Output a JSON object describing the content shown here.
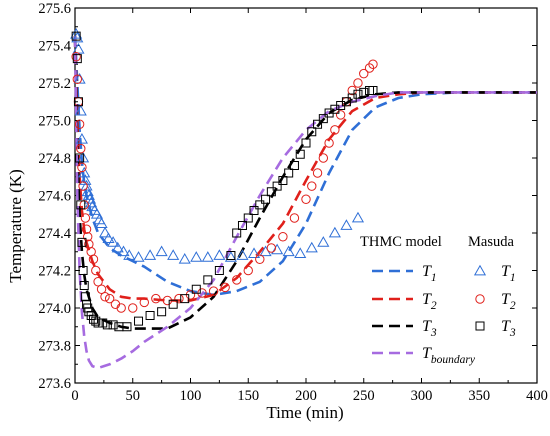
{
  "chart_data": {
    "type": "line",
    "xlabel": "Time (min)",
    "ylabel": "Temperature (K)",
    "xlim": [
      0,
      400
    ],
    "ylim": [
      273.6,
      275.6
    ],
    "xticks": [
      0,
      50,
      100,
      150,
      200,
      250,
      300,
      350,
      400
    ],
    "yticks": [
      273.6,
      273.8,
      274.0,
      274.2,
      274.4,
      274.6,
      274.8,
      275.0,
      275.2,
      275.4,
      275.6
    ],
    "xtick_labels": [
      "0",
      "50",
      "100",
      "150",
      "200",
      "250",
      "300",
      "350",
      "400"
    ],
    "ytick_labels": [
      "273.6",
      "273.8",
      "274.0",
      "274.2",
      "274.4",
      "274.6",
      "274.8",
      "275.0",
      "275.2",
      "275.4",
      "275.6"
    ],
    "grid": false,
    "legend": {
      "placement": "bottom-right",
      "model_header": "THMC model",
      "exp_header": "Masuda",
      "base_labels": [
        "T",
        "T",
        "T",
        "T"
      ],
      "sub_labels": [
        "1",
        "2",
        "3",
        "boundary"
      ]
    },
    "series": [
      {
        "kind": "model",
        "style": "dashed",
        "color": "#2f6fd6",
        "x": [
          0,
          2,
          4,
          6,
          8,
          10,
          15,
          20,
          30,
          40,
          50,
          60,
          80,
          100,
          120,
          140,
          160,
          180,
          200,
          220,
          240,
          260,
          280,
          300,
          330,
          360,
          400
        ],
        "y": [
          275.45,
          275.2,
          274.95,
          274.78,
          274.67,
          274.6,
          274.48,
          274.4,
          274.32,
          274.28,
          274.25,
          274.22,
          274.14,
          274.09,
          274.07,
          274.09,
          274.14,
          274.25,
          274.45,
          274.72,
          274.95,
          275.07,
          275.12,
          275.14,
          275.15,
          275.15,
          275.15
        ]
      },
      {
        "kind": "model",
        "style": "dashed",
        "color": "#e0201b",
        "x": [
          0,
          2,
          4,
          6,
          8,
          10,
          15,
          20,
          30,
          40,
          50,
          60,
          80,
          100,
          120,
          140,
          160,
          180,
          200,
          220,
          240,
          260,
          280,
          300,
          330,
          360,
          400
        ],
        "y": [
          275.45,
          275.0,
          274.7,
          274.52,
          274.42,
          274.35,
          274.25,
          274.18,
          274.1,
          274.06,
          274.05,
          274.05,
          274.04,
          274.04,
          274.07,
          274.16,
          274.3,
          274.45,
          274.68,
          274.9,
          275.05,
          275.12,
          275.14,
          275.15,
          275.15,
          275.15,
          275.15
        ]
      },
      {
        "kind": "model",
        "style": "dashed",
        "color": "#000000",
        "x": [
          0,
          2,
          4,
          6,
          8,
          10,
          15,
          20,
          30,
          40,
          50,
          60,
          80,
          100,
          120,
          140,
          160,
          180,
          200,
          220,
          240,
          260,
          280,
          300,
          330,
          360,
          400
        ],
        "y": [
          275.45,
          274.85,
          274.5,
          274.3,
          274.18,
          274.1,
          274.0,
          273.95,
          273.92,
          273.9,
          273.89,
          273.89,
          273.89,
          273.95,
          274.06,
          274.25,
          274.48,
          274.7,
          274.9,
          275.04,
          275.11,
          275.14,
          275.15,
          275.15,
          275.15,
          275.15,
          275.15
        ]
      },
      {
        "kind": "model",
        "style": "dashed",
        "color": "#a66be0",
        "x": [
          0,
          2,
          4,
          6,
          8,
          10,
          12,
          15,
          20,
          25,
          30,
          40,
          50,
          60,
          80,
          100,
          120,
          140,
          160,
          180,
          200,
          220,
          240,
          260,
          280,
          300,
          330,
          360,
          400
        ],
        "y": [
          275.45,
          274.6,
          274.2,
          273.98,
          273.85,
          273.77,
          273.72,
          273.69,
          273.68,
          273.69,
          273.7,
          273.73,
          273.77,
          273.82,
          273.9,
          274.0,
          274.15,
          274.38,
          274.6,
          274.8,
          274.95,
          275.05,
          275.1,
          275.13,
          275.15,
          275.15,
          275.15,
          275.15,
          275.15
        ]
      },
      {
        "kind": "experiment",
        "marker": "triangle",
        "color": "#2f6fd6",
        "x": [
          1,
          2,
          3,
          4,
          5,
          6,
          7,
          8,
          9,
          10,
          11,
          12,
          13,
          14,
          15,
          17,
          19,
          21,
          23,
          26,
          29,
          33,
          37,
          42,
          47,
          55,
          65,
          75,
          85,
          95,
          105,
          115,
          125,
          135,
          145,
          155,
          165,
          175,
          185,
          195,
          205,
          215,
          225,
          235,
          245
        ],
        "y": [
          275.46,
          275.44,
          275.38,
          275.22,
          275.05,
          274.9,
          274.8,
          274.72,
          274.68,
          274.65,
          274.62,
          274.6,
          274.58,
          274.56,
          274.54,
          274.52,
          274.5,
          274.47,
          274.45,
          274.4,
          274.37,
          274.35,
          274.32,
          274.3,
          274.28,
          274.27,
          274.28,
          274.3,
          274.28,
          274.26,
          274.27,
          274.27,
          274.28,
          274.27,
          274.28,
          274.29,
          274.3,
          274.31,
          274.3,
          274.29,
          274.32,
          274.35,
          274.4,
          274.44,
          274.48
        ]
      },
      {
        "kind": "experiment",
        "marker": "circle",
        "color": "#e0201b",
        "x": [
          1,
          2,
          3,
          4,
          5,
          6,
          7,
          8,
          9,
          10,
          11,
          12,
          14,
          16,
          18,
          20,
          23,
          26,
          30,
          35,
          40,
          50,
          60,
          70,
          80,
          90,
          100,
          110,
          120,
          130,
          140,
          150,
          160,
          170,
          180,
          190,
          200,
          205,
          210,
          215,
          220,
          225,
          230,
          235,
          240,
          245,
          250,
          255,
          258
        ],
        "y": [
          275.34,
          275.22,
          275.1,
          274.98,
          274.85,
          274.75,
          274.65,
          274.55,
          274.48,
          274.42,
          274.38,
          274.34,
          274.3,
          274.26,
          274.2,
          274.14,
          274.1,
          274.06,
          274.05,
          274.02,
          274.0,
          274.0,
          274.03,
          274.05,
          274.04,
          274.05,
          274.07,
          274.08,
          274.09,
          274.11,
          274.15,
          274.2,
          274.26,
          274.32,
          274.38,
          274.48,
          274.58,
          274.65,
          274.72,
          274.8,
          274.88,
          274.95,
          275.03,
          275.1,
          275.16,
          275.2,
          275.25,
          275.28,
          275.3
        ]
      },
      {
        "kind": "experiment",
        "marker": "square",
        "color": "#000000",
        "x": [
          1,
          2,
          3,
          4,
          5,
          6,
          7,
          8,
          9,
          10,
          11,
          12,
          14,
          16,
          18,
          20,
          24,
          28,
          33,
          38,
          45,
          55,
          65,
          75,
          85,
          95,
          105,
          115,
          125,
          135,
          140,
          145,
          150,
          155,
          160,
          165,
          170,
          175,
          180,
          185,
          190,
          195,
          200,
          205,
          210,
          215,
          220,
          225,
          230,
          235,
          240,
          245,
          250,
          255,
          258
        ],
        "y": [
          275.45,
          275.33,
          275.1,
          274.8,
          274.55,
          274.35,
          274.2,
          274.12,
          274.06,
          274.02,
          274.0,
          273.98,
          273.96,
          273.94,
          273.93,
          273.92,
          273.92,
          273.91,
          273.91,
          273.9,
          273.9,
          273.93,
          273.96,
          273.98,
          274.02,
          274.05,
          274.1,
          274.15,
          274.2,
          274.28,
          274.4,
          274.44,
          274.48,
          274.52,
          274.55,
          274.58,
          274.62,
          274.65,
          274.68,
          274.72,
          274.76,
          274.82,
          274.88,
          274.94,
          274.98,
          275.01,
          275.04,
          275.06,
          275.08,
          275.1,
          275.12,
          275.14,
          275.15,
          275.16,
          275.16
        ]
      }
    ]
  }
}
